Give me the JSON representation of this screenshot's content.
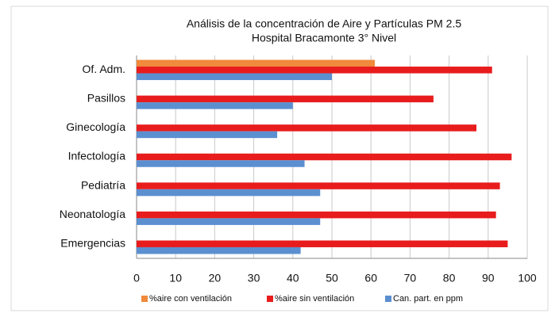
{
  "chart_data": {
    "type": "hbar",
    "title": "Análisis de la concentración de Aire y Partículas PM 2.5",
    "subtitle": "Hospital Bracamonte 3° Nivel",
    "categories": [
      "Of. Adm.",
      "Pasillos",
      "Ginecología",
      "Infectología",
      "Pediatría",
      "Neonatología",
      "Emergencias"
    ],
    "series": [
      {
        "name": "%aire con ventilación",
        "color": "#f08a3c",
        "values": [
          61,
          null,
          null,
          null,
          null,
          null,
          null
        ]
      },
      {
        "name": "%aire sin ventilación",
        "color": "#e81c1c",
        "values": [
          91,
          76,
          87,
          96,
          93,
          92,
          95
        ]
      },
      {
        "name": "Can. part. en ppm",
        "color": "#5b8fd0",
        "values": [
          50,
          40,
          36,
          43,
          47,
          47,
          42
        ]
      }
    ],
    "xlim": [
      0,
      100
    ],
    "xticks": [
      0,
      10,
      20,
      30,
      40,
      50,
      60,
      70,
      80,
      90,
      100
    ],
    "grid": true
  }
}
